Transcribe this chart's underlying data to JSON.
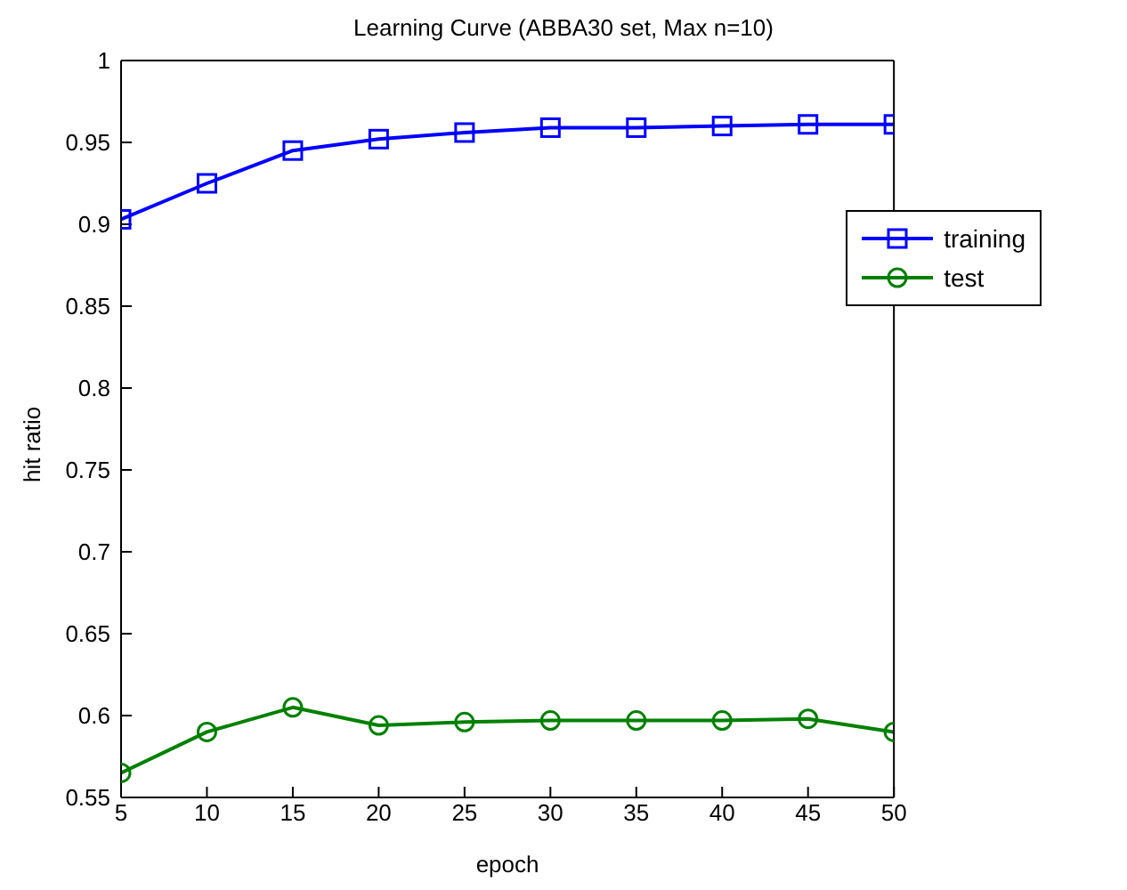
{
  "chart_data": {
    "type": "line",
    "title": "Learning Curve (ABBA30 set, Max n=10)",
    "xlabel": "epoch",
    "ylabel": "hit ratio",
    "x": [
      5,
      10,
      15,
      20,
      25,
      30,
      35,
      40,
      45,
      50
    ],
    "series": [
      {
        "name": "training",
        "color": "#0000ff",
        "marker": "square",
        "values": [
          0.903,
          0.925,
          0.945,
          0.952,
          0.956,
          0.959,
          0.959,
          0.96,
          0.961,
          0.961
        ]
      },
      {
        "name": "test",
        "color": "#008000",
        "marker": "circle",
        "values": [
          0.565,
          0.59,
          0.605,
          0.594,
          0.596,
          0.597,
          0.597,
          0.597,
          0.598,
          0.59
        ]
      }
    ],
    "xlim": [
      5,
      50
    ],
    "xticks": [
      5,
      10,
      15,
      20,
      25,
      30,
      35,
      40,
      45,
      50
    ],
    "ylim": [
      0.55,
      1
    ],
    "yticks": [
      0.55,
      0.6,
      0.65,
      0.7,
      0.75,
      0.8,
      0.85,
      0.9,
      0.95,
      1
    ],
    "grid": false,
    "legend": "top right",
    "line_style": "solid"
  }
}
